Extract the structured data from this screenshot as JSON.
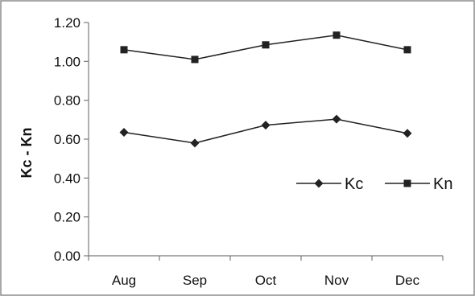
{
  "chart_data": {
    "type": "line",
    "categories": [
      "Aug",
      "Sep",
      "Oct",
      "Nov",
      "Dec"
    ],
    "series": [
      {
        "name": "Kc",
        "values": [
          0.635,
          0.58,
          0.672,
          0.703,
          0.63
        ],
        "marker": "diamond",
        "color": "#222222"
      },
      {
        "name": "Kn",
        "values": [
          1.06,
          1.01,
          1.085,
          1.135,
          1.06
        ],
        "marker": "square",
        "color": "#222222"
      }
    ],
    "title": "",
    "xlabel": "",
    "ylabel": "Kc - Kn",
    "ylim": [
      0,
      1.2
    ],
    "yticks": [
      "0.00",
      "0.20",
      "0.40",
      "0.60",
      "0.80",
      "1.00",
      "1.20"
    ],
    "grid": false,
    "legend_position": "right-middle"
  }
}
